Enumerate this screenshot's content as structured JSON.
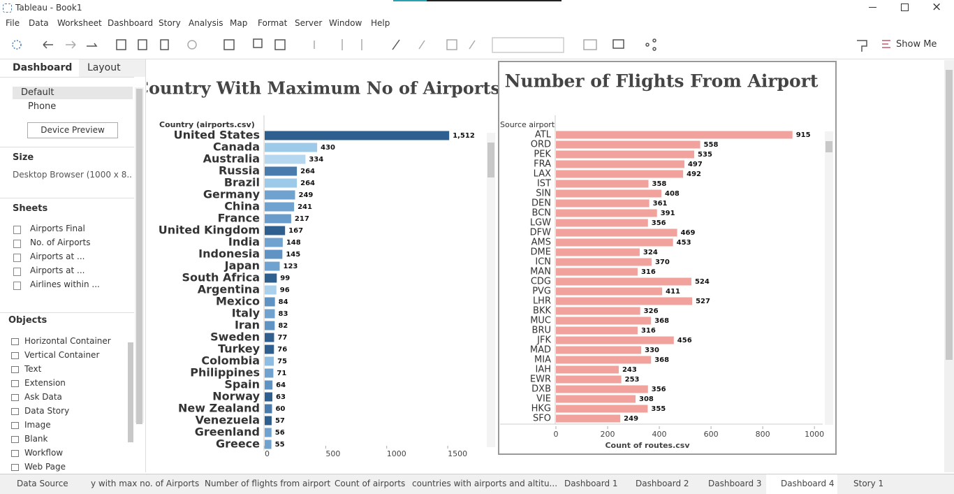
{
  "ui": {
    "window_title": "Tableau - Book1",
    "menu": [
      "File",
      "Data",
      "Worksheet",
      "Dashboard",
      "Story",
      "Analysis",
      "Map",
      "Format",
      "Server",
      "Window",
      "Help"
    ],
    "show_me": "Show Me",
    "left_tabs": [
      "Dashboard",
      "Layout"
    ],
    "devices": [
      "Default",
      "Phone"
    ],
    "device_preview": "Device Preview",
    "size_heading": "Size",
    "size_value": "Desktop Browser (1000 x 8...",
    "sheets_heading": "Sheets",
    "sheets": [
      "Airports Final",
      "No. of Airports",
      "Airports at ...",
      "Airports at ...",
      "Airlines within ..."
    ],
    "objects_heading": "Objects",
    "objects": [
      "Horizontal Container",
      "Vertical Container",
      "Text",
      "Extension",
      "Ask Data",
      "Data Story",
      "Image",
      "Blank",
      "Workflow",
      "Web Page"
    ],
    "tabs": [
      "Data Source",
      "y with max no. of Airports",
      "Number of flights from airport",
      "Count of airports",
      "countries with airports and altitu...",
      "Dashboard 1",
      "Dashboard 2",
      "Dashboard 3",
      "Dashboard 4",
      "Story 1"
    ]
  },
  "chart_data": [
    {
      "type": "barh",
      "title": "Country With Maximum No of Airports",
      "y_label": "Country (airports.csv)",
      "categories": [
        "United States",
        "Canada",
        "Australia",
        "Russia",
        "Brazil",
        "Germany",
        "China",
        "France",
        "United Kingdom",
        "India",
        "Indonesia",
        "Japan",
        "South Africa",
        "Argentina",
        "Mexico",
        "Italy",
        "Iran",
        "Sweden",
        "Turkey",
        "Colombia",
        "Philippines",
        "Spain",
        "Norway",
        "New Zealand",
        "Venezuela",
        "Greenland",
        "Greece"
      ],
      "values": [
        1512,
        430,
        334,
        264,
        264,
        249,
        241,
        217,
        167,
        148,
        145,
        123,
        99,
        96,
        84,
        83,
        82,
        77,
        76,
        75,
        71,
        64,
        63,
        60,
        57,
        56,
        55
      ],
      "value_labels": [
        "1,512",
        "430",
        "334",
        "264",
        "264",
        "249",
        "241",
        "217",
        "167",
        "148",
        "145",
        "123",
        "99",
        "96",
        "84",
        "83",
        "82",
        "77",
        "76",
        "75",
        "71",
        "64",
        "63",
        "60",
        "57",
        "56",
        "55"
      ],
      "colors": [
        "#2f5f8f",
        "#9ecae9",
        "#b5d7ef",
        "#4a7bad",
        "#9ecae9",
        "#6fa2cf",
        "#6fa2cf",
        "#6a9ccb",
        "#2f5f8f",
        "#6fa2cf",
        "#5f93c4",
        "#6fa2cf",
        "#2f5f8f",
        "#a9d1ed",
        "#5f93c4",
        "#6fa2cf",
        "#5f93c4",
        "#2f5f8f",
        "#2f5f8f",
        "#8dbde3",
        "#6fa2cf",
        "#5f93c4",
        "#2f5f8f",
        "#4a7bad",
        "#2f5f8f",
        "#6fa2cf",
        "#6fa2cf"
      ],
      "xlim": [
        0,
        1780
      ],
      "xticks": [
        0,
        500,
        1000,
        1500
      ]
    },
    {
      "type": "barh",
      "title": "Number of Flights From Airport",
      "y_label": "Source airport",
      "x_label": "Count of routes.csv",
      "categories": [
        "ATL",
        "ORD",
        "PEK",
        "FRA",
        "LAX",
        "IST",
        "SIN",
        "DEN",
        "BCN",
        "LGW",
        "DFW",
        "AMS",
        "DME",
        "ICN",
        "MAN",
        "CDG",
        "PVG",
        "LHR",
        "BKK",
        "MUC",
        "BRU",
        "JFK",
        "MAD",
        "MIA",
        "IAH",
        "EWR",
        "DXB",
        "VIE",
        "HKG",
        "SFO"
      ],
      "values": [
        915,
        558,
        535,
        497,
        492,
        358,
        408,
        361,
        391,
        356,
        469,
        453,
        324,
        370,
        316,
        524,
        411,
        527,
        326,
        368,
        316,
        456,
        330,
        368,
        243,
        253,
        356,
        308,
        355,
        249
      ],
      "color": "#f2a29d",
      "xlim": [
        0,
        1032
      ],
      "xticks": [
        0,
        200,
        400,
        600,
        800,
        1000
      ]
    }
  ]
}
